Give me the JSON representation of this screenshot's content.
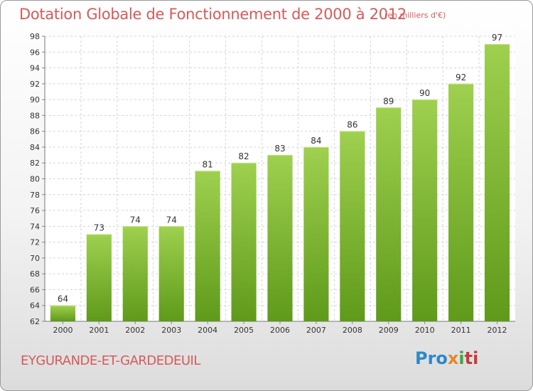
{
  "chart_data": {
    "type": "bar",
    "title": "Dotation Globale de Fonctionnement de 2000 à 2012",
    "subtitle": "(en milliers d'€)",
    "categories": [
      "2000",
      "2001",
      "2002",
      "2003",
      "2004",
      "2005",
      "2006",
      "2007",
      "2008",
      "2009",
      "2010",
      "2011",
      "2012"
    ],
    "values": [
      64,
      73,
      74,
      74,
      81,
      82,
      83,
      84,
      86,
      89,
      90,
      92,
      97
    ],
    "ylim": [
      62,
      98
    ],
    "yticks": [
      62,
      64,
      66,
      68,
      70,
      72,
      74,
      76,
      78,
      80,
      82,
      84,
      86,
      88,
      90,
      92,
      94,
      96,
      98
    ],
    "grid": true,
    "bar_color": "#7dbb2f",
    "title_color": "#d65a5a"
  },
  "commune": "EYGURANDE-ET-GARDEDEUIL",
  "logo": {
    "p1": "Pro",
    "p2": "x",
    "p3": "i",
    "p4": "ti"
  }
}
